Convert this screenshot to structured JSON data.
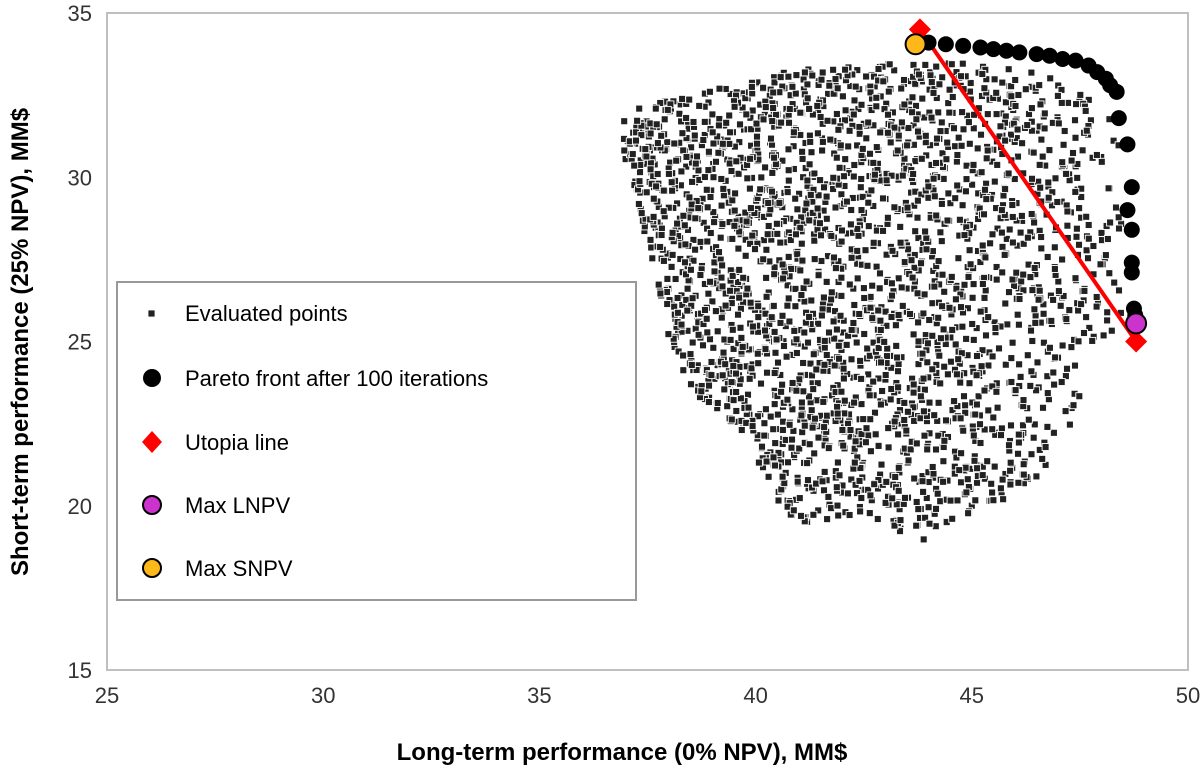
{
  "chart_data": {
    "type": "scatter",
    "xlabel": "Long-term performance (0% NPV), MM$",
    "ylabel": "Short-term performance (25% NPV), MM$",
    "xlim": [
      25,
      50
    ],
    "ylim": [
      15,
      35
    ],
    "x_ticks": [
      25,
      30,
      35,
      40,
      45,
      50
    ],
    "y_ticks": [
      15,
      20,
      25,
      30,
      35
    ],
    "x_tick_labels": [
      "25",
      "30",
      "35",
      "40",
      "45",
      "50"
    ],
    "y_tick_labels": [
      "15",
      "20",
      "25",
      "30",
      "35"
    ],
    "grid": false,
    "legend_placement": "left",
    "series": [
      {
        "name": "Evaluated points",
        "marker": "small-square",
        "color": "#222222",
        "cloud": {
          "point_count": 2600,
          "x_range": [
            36.8,
            48.6
          ],
          "y_range": [
            18.9,
            33.6
          ],
          "boundary": [
            [
              37.0,
              32.1
            ],
            [
              39.0,
              32.7
            ],
            [
              41.0,
              33.3
            ],
            [
              43.0,
              33.5
            ],
            [
              44.5,
              33.5
            ],
            [
              46.0,
              33.3
            ],
            [
              47.5,
              32.9
            ],
            [
              48.5,
              32.0
            ],
            [
              48.5,
              25.6
            ],
            [
              48.0,
              25.0
            ],
            [
              47.0,
              21.5
            ],
            [
              46.0,
              20.3
            ],
            [
              44.5,
              19.5
            ],
            [
              43.8,
              18.9
            ],
            [
              42.5,
              19.8
            ],
            [
              41.0,
              19.4
            ],
            [
              40.5,
              20.2
            ],
            [
              39.5,
              22.5
            ],
            [
              38.6,
              23.4
            ],
            [
              38.0,
              25.0
            ],
            [
              37.6,
              27.5
            ],
            [
              37.0,
              30.5
            ],
            [
              36.8,
              31.5
            ]
          ]
        }
      },
      {
        "name": "Pareto front after 100 iterations",
        "marker": "circle",
        "color": "#000000",
        "points": [
          [
            44.0,
            34.1
          ],
          [
            44.4,
            34.05
          ],
          [
            44.8,
            34.0
          ],
          [
            45.2,
            33.95
          ],
          [
            45.5,
            33.9
          ],
          [
            45.8,
            33.85
          ],
          [
            46.1,
            33.8
          ],
          [
            46.5,
            33.75
          ],
          [
            46.8,
            33.7
          ],
          [
            47.1,
            33.6
          ],
          [
            47.4,
            33.55
          ],
          [
            47.7,
            33.4
          ],
          [
            47.9,
            33.2
          ],
          [
            48.1,
            33.0
          ],
          [
            48.2,
            32.8
          ],
          [
            48.35,
            32.6
          ],
          [
            48.4,
            31.8
          ],
          [
            48.6,
            31.0
          ],
          [
            48.7,
            29.7
          ],
          [
            48.6,
            29.0
          ],
          [
            48.7,
            28.4
          ],
          [
            48.7,
            27.4
          ],
          [
            48.7,
            27.1
          ],
          [
            48.75,
            26.0
          ],
          [
            48.78,
            25.8
          ]
        ]
      },
      {
        "name": "Utopia line",
        "marker": "diamond",
        "color": "#ff0000",
        "points": [
          [
            43.8,
            34.5
          ],
          [
            48.8,
            25.0
          ]
        ]
      },
      {
        "name": "Max LNPV",
        "marker": "circle",
        "color": "#cc33cc",
        "points": [
          [
            48.8,
            25.55
          ]
        ]
      },
      {
        "name": "Max SNPV",
        "marker": "circle",
        "color": "#ffb819",
        "points": [
          [
            43.7,
            34.05
          ]
        ]
      }
    ]
  }
}
